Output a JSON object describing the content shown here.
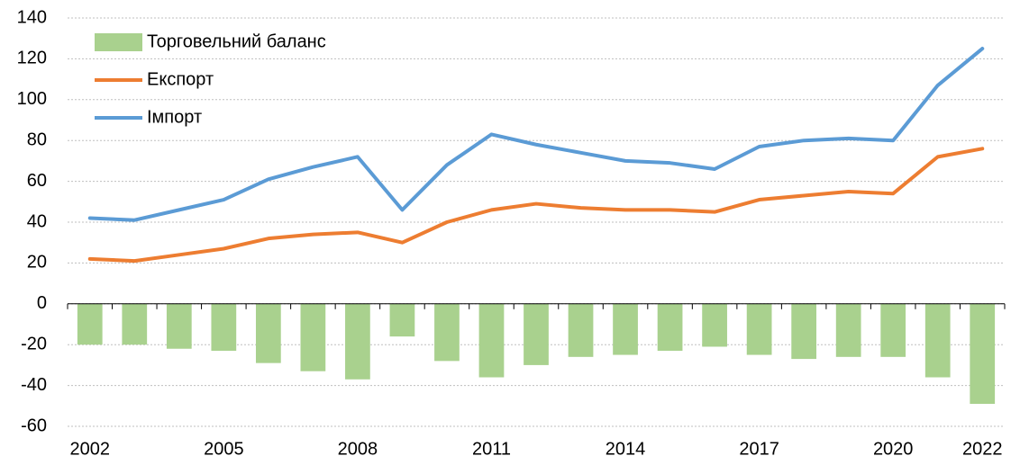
{
  "chart_data": {
    "type": "combo",
    "categories": [
      "2002",
      null,
      null,
      "2005",
      null,
      null,
      "2008",
      null,
      null,
      "2011",
      null,
      null,
      "2014",
      null,
      null,
      "2017",
      null,
      null,
      "2020",
      null,
      "2022"
    ],
    "series": [
      {
        "name": "Торговельний баланс",
        "type": "bar",
        "color": "#a9d18e",
        "values": [
          -20,
          -20,
          -22,
          -23,
          -29,
          -33,
          -37,
          -16,
          -28,
          -36,
          -30,
          -26,
          -25,
          -23,
          -21,
          -25,
          -27,
          -26,
          -26,
          -36,
          -49
        ]
      },
      {
        "name": "Експорт",
        "type": "line",
        "color": "#ed7d31",
        "values": [
          22,
          21,
          24,
          27,
          32,
          34,
          35,
          30,
          40,
          46,
          49,
          47,
          46,
          46,
          45,
          51,
          53,
          55,
          54,
          72,
          76
        ]
      },
      {
        "name": "Імпорт",
        "type": "line",
        "color": "#5b9bd5",
        "values": [
          42,
          41,
          46,
          51,
          61,
          67,
          72,
          46,
          68,
          83,
          78,
          74,
          70,
          69,
          66,
          77,
          80,
          81,
          80,
          107,
          125
        ]
      }
    ],
    "ylim": [
      -60,
      140
    ],
    "yticks": [
      -60,
      -40,
      -20,
      0,
      20,
      40,
      60,
      80,
      100,
      120,
      140
    ],
    "grid": true,
    "legend": "top-left"
  }
}
